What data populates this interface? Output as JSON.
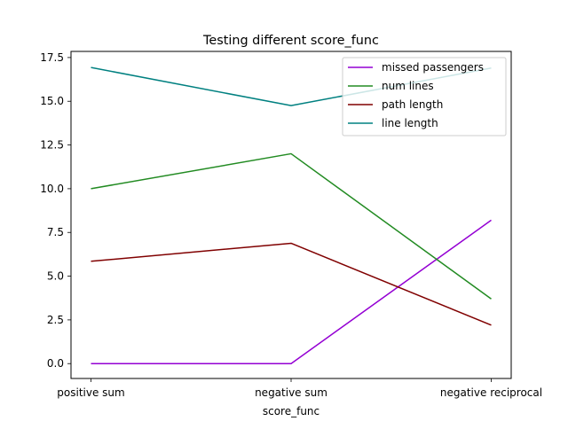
{
  "chart_data": {
    "type": "line",
    "title": "Testing different score_func",
    "xlabel": "score_func",
    "ylabel": "",
    "categories": [
      "positive sum",
      "negative sum",
      "negative reciprocal"
    ],
    "ylim": [
      -0.85,
      17.85
    ],
    "yticks": [
      0.0,
      2.5,
      5.0,
      7.5,
      10.0,
      12.5,
      15.0,
      17.5
    ],
    "ytick_labels": [
      "0.0",
      "2.5",
      "5.0",
      "7.5",
      "10.0",
      "12.5",
      "15.0",
      "17.5"
    ],
    "grid": false,
    "legend_position": "upper right",
    "series": [
      {
        "name": "missed passengers",
        "values": [
          0.0,
          0.0,
          8.2
        ],
        "color": "#9400d3"
      },
      {
        "name": "num lines",
        "values": [
          10.0,
          12.0,
          3.7
        ],
        "color": "#228b22"
      },
      {
        "name": "path length",
        "values": [
          5.85,
          6.88,
          2.2
        ],
        "color": "#800000"
      },
      {
        "name": "line length",
        "values": [
          16.93,
          14.75,
          16.9
        ],
        "color": "#008080"
      }
    ]
  }
}
